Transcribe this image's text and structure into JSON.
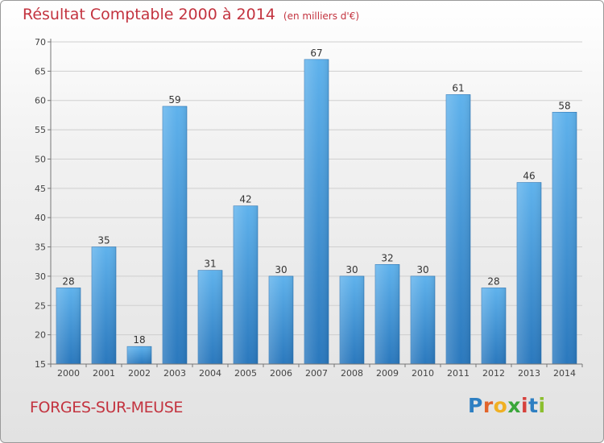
{
  "header": {
    "title": "Résultat Comptable 2000 à 2014",
    "subtitle": "(en milliers d'€)"
  },
  "footer": {
    "commune": "FORGES-SUR-MEUSE",
    "logo_letters": [
      {
        "ch": "P",
        "color": "#2e7fc2"
      },
      {
        "ch": "r",
        "color": "#e2642b"
      },
      {
        "ch": "o",
        "color": "#f0b023"
      },
      {
        "ch": "x",
        "color": "#3aa63a"
      },
      {
        "ch": "i",
        "color": "#d6413c"
      },
      {
        "ch": "t",
        "color": "#2e7fc2"
      },
      {
        "ch": "i",
        "color": "#8cbf2f"
      }
    ]
  },
  "chart_data": {
    "type": "bar",
    "title": "Résultat Comptable 2000 à 2014",
    "subtitle": "(en milliers d'€)",
    "categories": [
      "2000",
      "2001",
      "2002",
      "2003",
      "2004",
      "2005",
      "2006",
      "2007",
      "2008",
      "2009",
      "2010",
      "2011",
      "2012",
      "2013",
      "2014"
    ],
    "values": [
      28,
      35,
      18,
      59,
      31,
      42,
      30,
      67,
      30,
      32,
      30,
      61,
      28,
      46,
      58
    ],
    "ylim": [
      15,
      70
    ],
    "yticks": [
      15,
      20,
      25,
      30,
      35,
      40,
      45,
      50,
      55,
      60,
      65,
      70
    ],
    "grid": true,
    "bar_color": "#3a8fd6",
    "grid_color": "#cfcfcf"
  }
}
